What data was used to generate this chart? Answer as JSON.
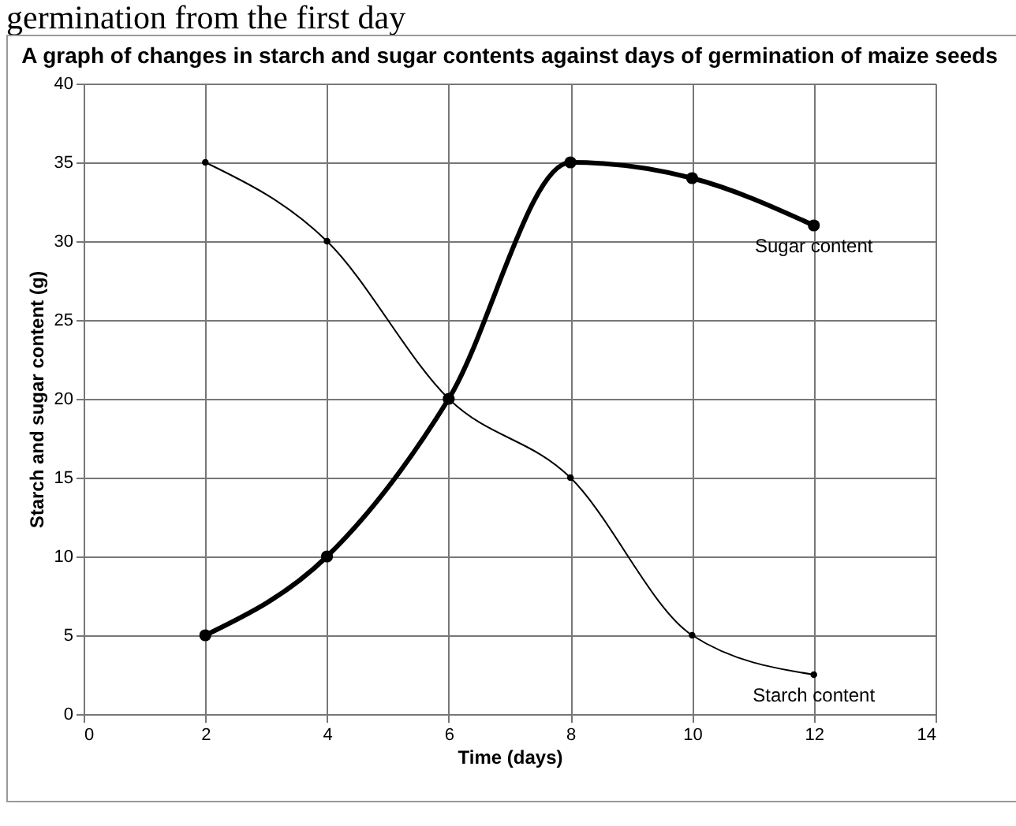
{
  "chart_data": {
    "type": "line",
    "title": "A graph of changes in starch and sugar contents against days of\ngermination of maize seeds",
    "annotations": [
      "germination from the first day"
    ],
    "xlabel": "Time (days)",
    "ylabel": "Starch and sugar content (g)",
    "x": [
      2,
      4,
      6,
      8,
      10,
      12
    ],
    "series": [
      {
        "name": "Sugar content",
        "color": "#000000",
        "values": [
          5,
          10,
          20,
          35,
          34,
          31
        ]
      },
      {
        "name": "Starch content",
        "color": "#000000",
        "values": [
          35,
          30,
          20,
          15,
          5,
          2.5
        ]
      }
    ],
    "xlim": [
      0,
      14
    ],
    "xticks": [
      0,
      2,
      4,
      6,
      8,
      10,
      12,
      14
    ],
    "ylim": [
      0,
      40
    ],
    "yticks": [
      0,
      5,
      10,
      15,
      20,
      25,
      30,
      35,
      40
    ],
    "grid": true,
    "marker": "circle",
    "line_style": "solid"
  }
}
